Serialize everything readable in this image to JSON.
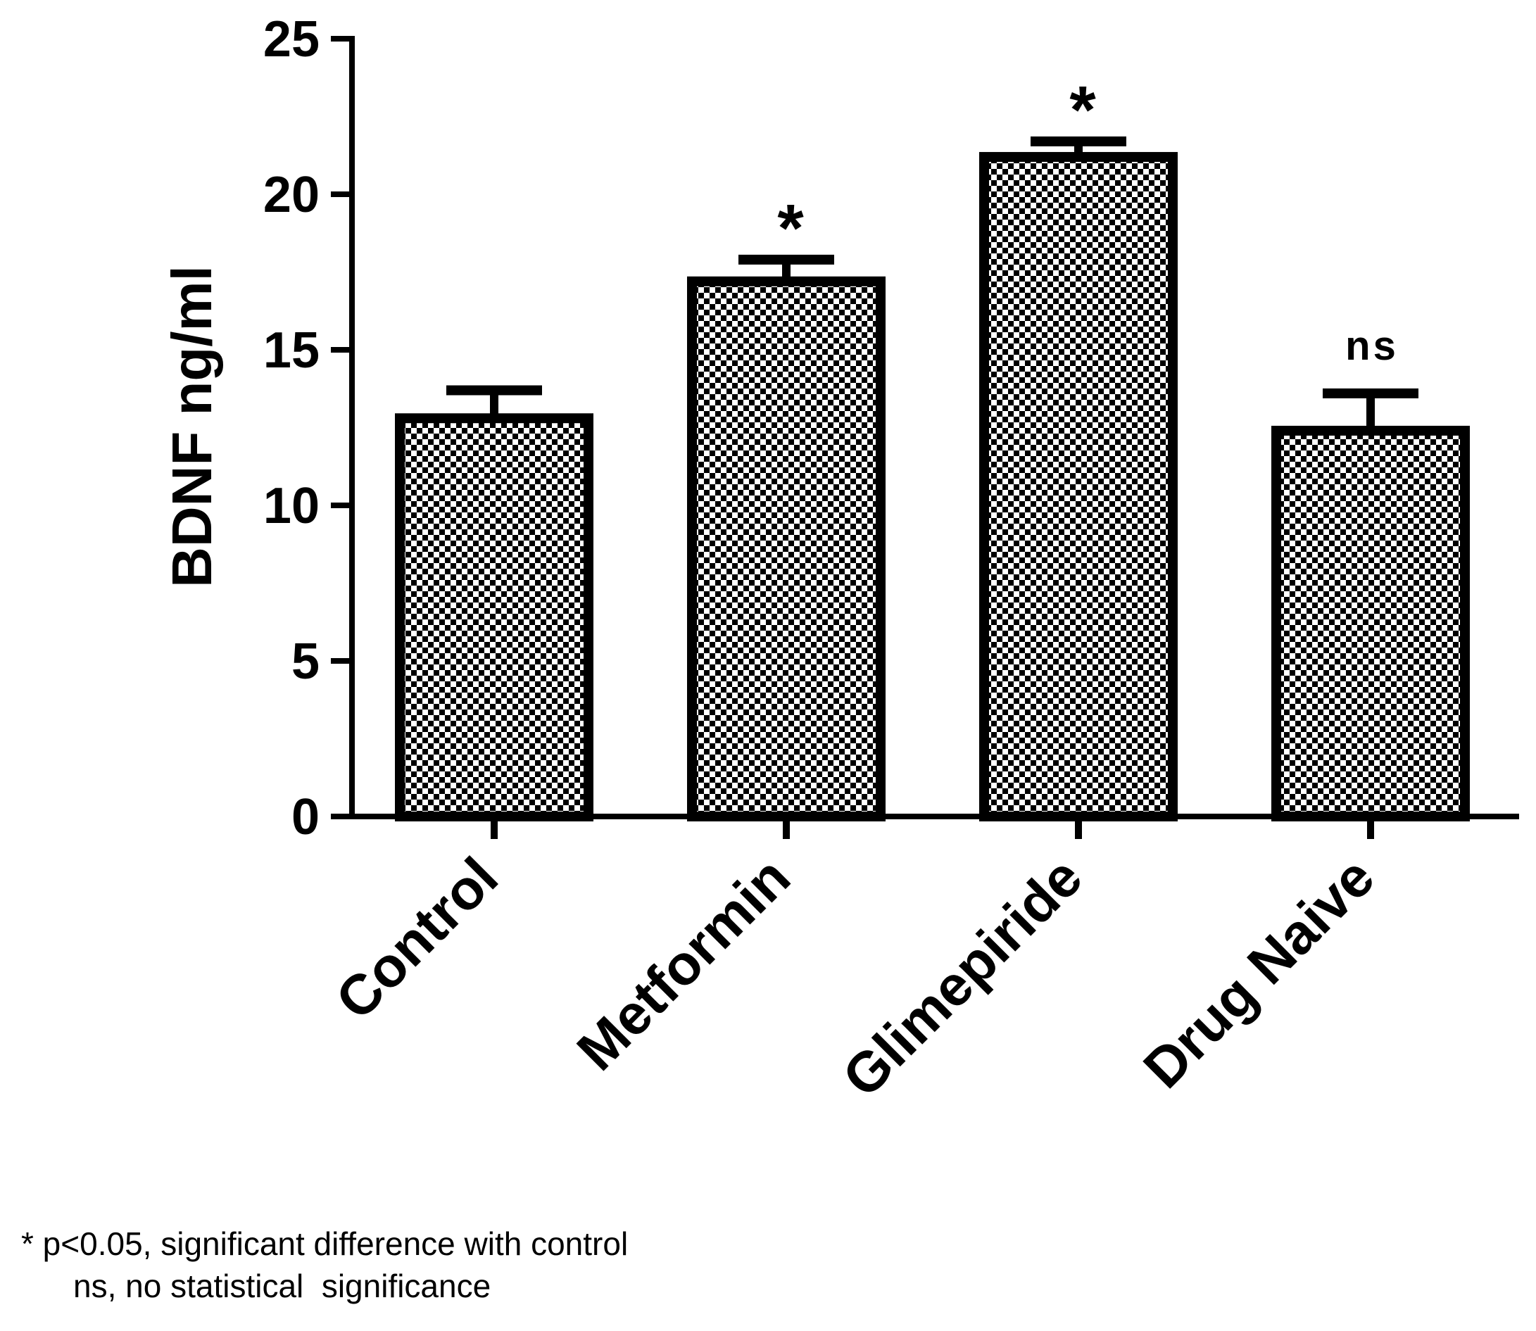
{
  "chart_data": {
    "type": "bar",
    "title": "",
    "xlabel": "",
    "ylabel": "BDNF ng/ml",
    "ylim": [
      0,
      25
    ],
    "yticks": [
      0,
      5,
      10,
      15,
      20,
      25
    ],
    "grid": false,
    "categories": [
      "Control",
      "Metformin",
      "Glimepiride",
      "Drug Naive"
    ],
    "values": [
      12.8,
      17.2,
      21.2,
      12.4
    ],
    "error_upper": [
      0.9,
      0.7,
      0.5,
      1.2
    ],
    "significance": [
      "",
      "*",
      "*",
      "ns"
    ],
    "fill_pattern": "checkerboard"
  },
  "footnotes": {
    "line1": "* p<0.05, significant difference with control",
    "line2": "ns, no statistical  significance"
  }
}
